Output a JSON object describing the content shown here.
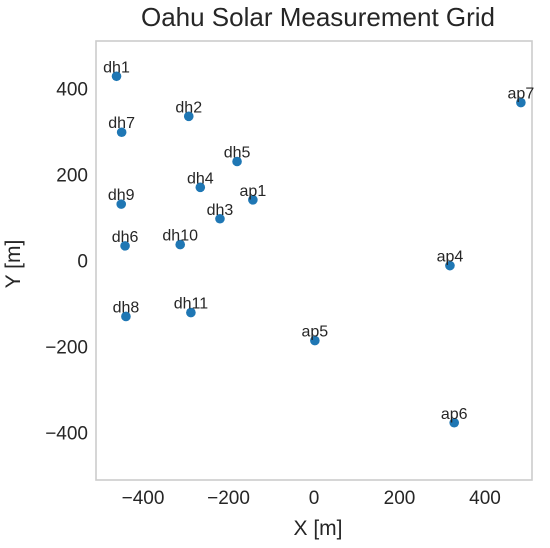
{
  "chart_data": {
    "type": "scatter",
    "title": "Oahu Solar Measurement Grid",
    "xlabel": "X [m]",
    "ylabel": "Y [m]",
    "xlim": [
      -510,
      510
    ],
    "ylim": [
      -510,
      510
    ],
    "xticks": [
      -400,
      -200,
      0,
      200,
      400
    ],
    "yticks": [
      -400,
      -200,
      0,
      200,
      400
    ],
    "xtick_labels": [
      "−400",
      "−200",
      "0",
      "200",
      "400"
    ],
    "ytick_labels": [
      "−400",
      "−200",
      "0",
      "200",
      "400"
    ],
    "grid": false,
    "color": "#1f77b4",
    "points": [
      {
        "label": "dh1",
        "x": -462,
        "y": 428
      },
      {
        "label": "dh2",
        "x": -293,
        "y": 335
      },
      {
        "label": "dh7",
        "x": -450,
        "y": 298
      },
      {
        "label": "dh5",
        "x": -180,
        "y": 230
      },
      {
        "label": "dh4",
        "x": -266,
        "y": 170
      },
      {
        "label": "ap1",
        "x": -143,
        "y": 141
      },
      {
        "label": "dh9",
        "x": -451,
        "y": 131
      },
      {
        "label": "dh3",
        "x": -220,
        "y": 97
      },
      {
        "label": "dh10",
        "x": -313,
        "y": 37
      },
      {
        "label": "dh6",
        "x": -442,
        "y": 34
      },
      {
        "label": "ap4",
        "x": 318,
        "y": -12
      },
      {
        "label": "ap7",
        "x": 484,
        "y": 367
      },
      {
        "label": "dh8",
        "x": -440,
        "y": -130
      },
      {
        "label": "dh11",
        "x": -288,
        "y": -121
      },
      {
        "label": "ap5",
        "x": 2,
        "y": -186
      },
      {
        "label": "ap6",
        "x": 328,
        "y": -377
      }
    ]
  }
}
